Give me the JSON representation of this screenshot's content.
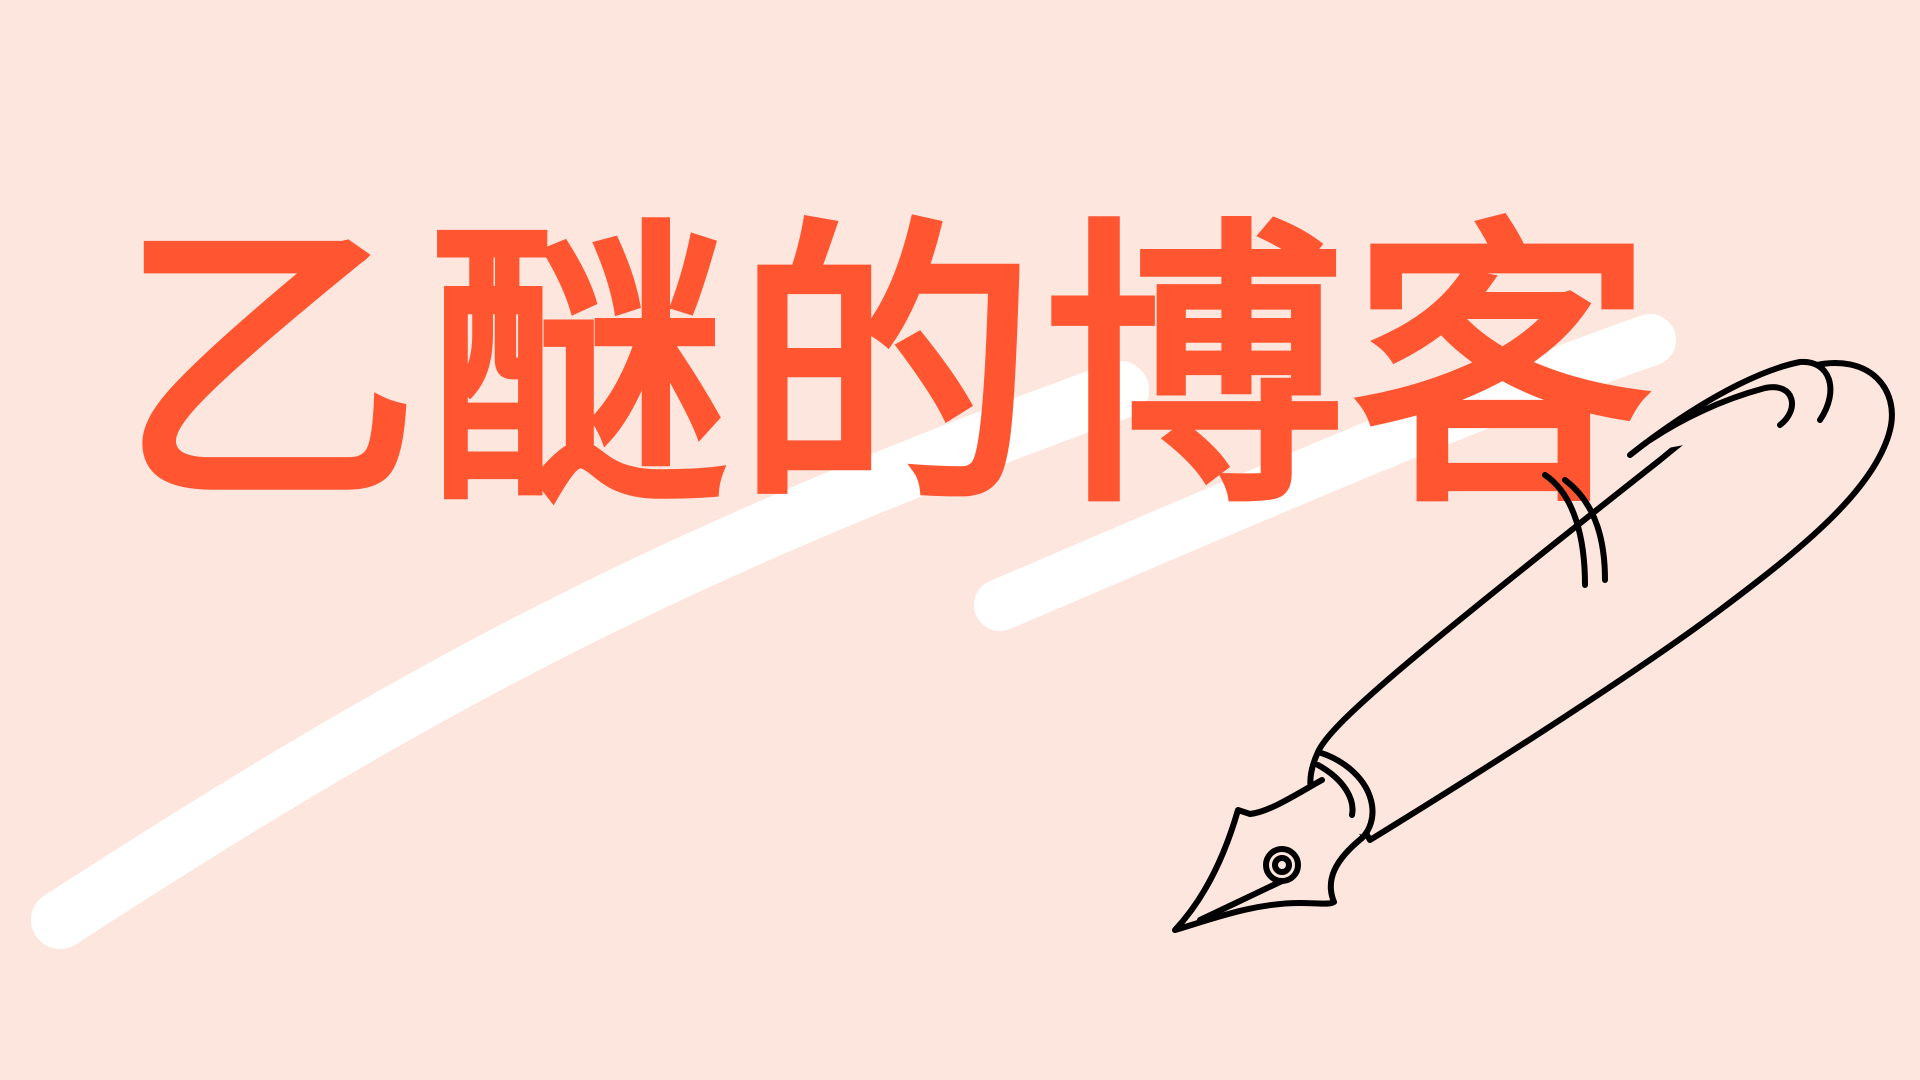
{
  "title": "乙醚的博客",
  "colors": {
    "background": "#fde6dd",
    "title": "#ff5530",
    "brush_stroke": "#ffffff",
    "pen_outline": "#000000",
    "pen_fill": "#fde6dd"
  },
  "icons": {
    "pen": "fountain-pen-icon",
    "brush": "brush-stroke"
  }
}
